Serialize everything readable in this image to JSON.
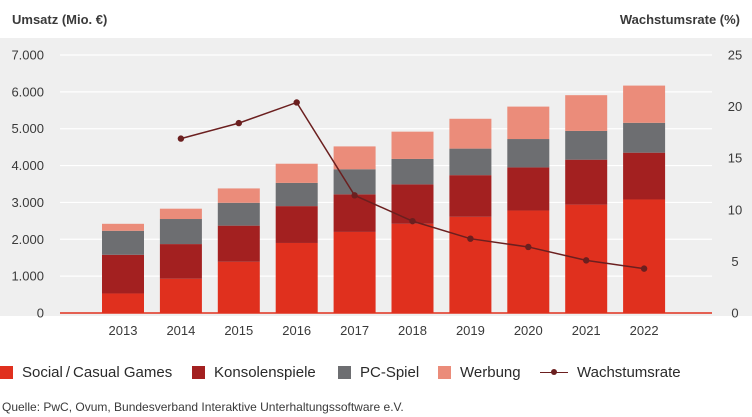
{
  "chart_data": {
    "type": "bar",
    "stacked": true,
    "left_axis_title": "Umsatz (Mio. €)",
    "right_axis_title": "Wachstumsrate (%)",
    "categories": [
      "2013",
      "2014",
      "2015",
      "2016",
      "2017",
      "2018",
      "2019",
      "2020",
      "2021",
      "2022"
    ],
    "ylim": [
      0,
      7000
    ],
    "yticks": [
      0,
      1000,
      2000,
      3000,
      4000,
      5000,
      6000,
      7000
    ],
    "ytick_labels": [
      "0",
      "1.000",
      "2.000",
      "3.000",
      "4.000",
      "5.000",
      "6.000",
      "7.000"
    ],
    "y2lim": [
      0,
      25
    ],
    "y2ticks": [
      0,
      5,
      10,
      15,
      20,
      25
    ],
    "y2tick_labels": [
      "0",
      "5",
      "10",
      "15",
      "20",
      "25"
    ],
    "series": [
      {
        "name": "Social / Casual Games",
        "color": "#e0301e",
        "values": [
          530,
          930,
          1390,
          1900,
          2200,
          2420,
          2610,
          2780,
          2940,
          3080
        ]
      },
      {
        "name": "Konsolenspiele",
        "color": "#a32020",
        "values": [
          1050,
          940,
          980,
          1000,
          1020,
          1070,
          1130,
          1170,
          1220,
          1270
        ]
      },
      {
        "name": "PC-Spiel",
        "color": "#6d6e71",
        "values": [
          650,
          680,
          620,
          630,
          680,
          690,
          720,
          770,
          780,
          810
        ]
      },
      {
        "name": "Werbung",
        "color": "#eb8c7a",
        "values": [
          190,
          280,
          390,
          520,
          620,
          740,
          810,
          880,
          970,
          1010
        ]
      }
    ],
    "line_series": {
      "name": "Wachstumsrate",
      "color": "#6b1f1f",
      "axis": "right",
      "values": [
        null,
        16.9,
        18.4,
        20.4,
        11.4,
        8.9,
        7.2,
        6.4,
        5.1,
        4.3
      ]
    },
    "grid": true,
    "legend_position": "bottom"
  },
  "legend": [
    {
      "label": "Social / Casual Games",
      "color": "#e0301e"
    },
    {
      "label": "Konsolenspiele",
      "color": "#a32020"
    },
    {
      "label": "PC-Spiel",
      "color": "#6d6e71"
    },
    {
      "label": "Werbung",
      "color": "#eb8c7a"
    },
    {
      "label": "Wachstumsrate",
      "color": "#6b1f1f"
    }
  ],
  "source": "Quelle: PwC, Ovum, Bundesverband Interaktive Unterhaltungssoftware e.V."
}
